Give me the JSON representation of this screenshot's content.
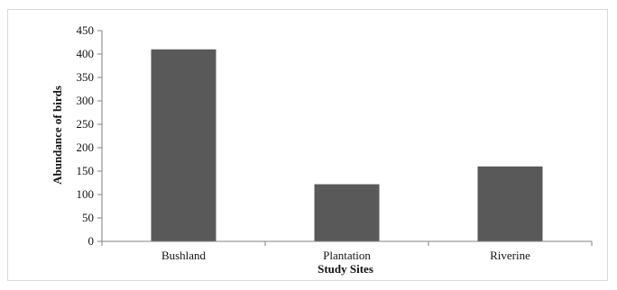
{
  "chart_data": {
    "type": "bar",
    "title": "",
    "xlabel": "Study Sites",
    "ylabel": "Abundance of birds",
    "categories": [
      "Bushland",
      "Plantation",
      "Riverine"
    ],
    "values": [
      410,
      122,
      160
    ],
    "ylim": [
      0,
      450
    ],
    "yticks": [
      "0",
      "50",
      "100",
      "150",
      "200",
      "250",
      "300",
      "350",
      "400",
      "450"
    ],
    "grid": false,
    "legend": "none",
    "bar_color": "#595959"
  }
}
